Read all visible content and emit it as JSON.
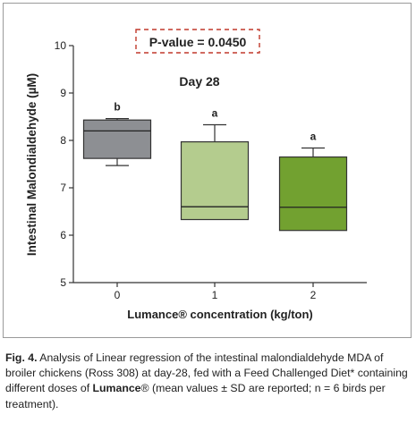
{
  "chart_data": {
    "type": "box",
    "title": "Day 28",
    "annotation": "P-value = 0.0450",
    "xlabel": "Lumance® concentration (kg/ton)",
    "ylabel": "Intestinal Malondialdehyde (µM)",
    "ylim": [
      5,
      10
    ],
    "yticks": [
      "5",
      "6",
      "7",
      "8",
      "9",
      "10"
    ],
    "categories": [
      "0",
      "1",
      "2"
    ],
    "boxes": [
      {
        "category": "0",
        "min": 7.47,
        "q1": 7.62,
        "median": 8.2,
        "q3": 8.43,
        "max": 8.46,
        "letter": "b",
        "color": "#8d8f93"
      },
      {
        "category": "1",
        "min": 6.33,
        "q1": 6.33,
        "median": 6.6,
        "q3": 7.97,
        "max": 8.33,
        "letter": "a",
        "color": "#b4cc8e"
      },
      {
        "category": "2",
        "min": 6.1,
        "q1": 6.1,
        "median": 6.59,
        "q3": 7.65,
        "max": 7.84,
        "letter": "a",
        "color": "#72a130"
      }
    ],
    "grid": false,
    "annotation_color": "#c0392b"
  },
  "caption": {
    "label": "Fig. 4.",
    "text1": " Analysis of Linear regression of the intestinal malondialdehyde MDA of broiler chickens (Ross 308) at day-28, fed with a Feed Challenged Diet* containing different doses of ",
    "brand": "Lumance",
    "reg": "®",
    "text2": " (mean values ± SD are reported; n = 6 birds per treatment)."
  }
}
